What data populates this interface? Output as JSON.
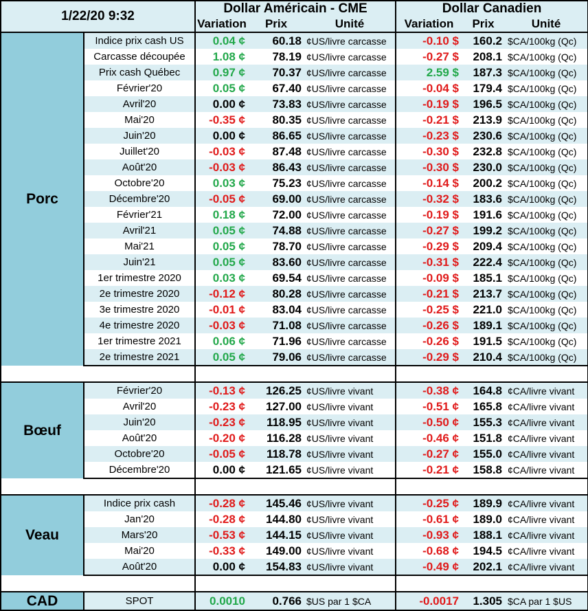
{
  "header": {
    "timestamp": "1/22/20 9:32",
    "us_group": "Dollar Américain - CME",
    "ca_group": "Dollar Canadien",
    "col_variation": "Variation",
    "col_prix": "Prix",
    "col_unite": "Unité"
  },
  "colors": {
    "header_bg": "#dbeef3",
    "category_bg": "#92cddc",
    "positive": "#22a84a",
    "negative": "#e01a1a"
  },
  "sections": [
    {
      "name": "Porc",
      "rows": [
        {
          "label": "Indice prix cash US",
          "us_var": "0.04 ¢",
          "us_sign": "pos",
          "us_prix": "60.18",
          "us_unit": "¢US/livre carcasse",
          "ca_var": "-0.10 $",
          "ca_sign": "neg",
          "ca_prix": "160.2",
          "ca_unit": "$CA/100kg (Qc)"
        },
        {
          "label": "Carcasse découpée",
          "us_var": "1.08 ¢",
          "us_sign": "pos",
          "us_prix": "78.19",
          "us_unit": "¢US/livre carcasse",
          "ca_var": "-0.27 $",
          "ca_sign": "neg",
          "ca_prix": "208.1",
          "ca_unit": "$CA/100kg (Qc)"
        },
        {
          "label": "Prix cash Québec",
          "us_var": "0.97 ¢",
          "us_sign": "pos",
          "us_prix": "70.37",
          "us_unit": "¢US/livre carcasse",
          "ca_var": "2.59 $",
          "ca_sign": "pos",
          "ca_prix": "187.3",
          "ca_unit": "$CA/100kg (Qc)"
        },
        {
          "label": "Février'20",
          "us_var": "0.05 ¢",
          "us_sign": "pos",
          "us_prix": "67.40",
          "us_unit": "¢US/livre carcasse",
          "ca_var": "-0.04 $",
          "ca_sign": "neg",
          "ca_prix": "179.4",
          "ca_unit": "$CA/100kg (Qc)"
        },
        {
          "label": "Avril'20",
          "us_var": "0.00 ¢",
          "us_sign": "zero",
          "us_prix": "73.83",
          "us_unit": "¢US/livre carcasse",
          "ca_var": "-0.19 $",
          "ca_sign": "neg",
          "ca_prix": "196.5",
          "ca_unit": "$CA/100kg (Qc)"
        },
        {
          "label": "Mai'20",
          "us_var": "-0.35 ¢",
          "us_sign": "neg",
          "us_prix": "80.35",
          "us_unit": "¢US/livre carcasse",
          "ca_var": "-0.21 $",
          "ca_sign": "neg",
          "ca_prix": "213.9",
          "ca_unit": "$CA/100kg (Qc)"
        },
        {
          "label": "Juin'20",
          "us_var": "0.00 ¢",
          "us_sign": "zero",
          "us_prix": "86.65",
          "us_unit": "¢US/livre carcasse",
          "ca_var": "-0.23 $",
          "ca_sign": "neg",
          "ca_prix": "230.6",
          "ca_unit": "$CA/100kg (Qc)"
        },
        {
          "label": "Juillet'20",
          "us_var": "-0.03 ¢",
          "us_sign": "neg",
          "us_prix": "87.48",
          "us_unit": "¢US/livre carcasse",
          "ca_var": "-0.30 $",
          "ca_sign": "neg",
          "ca_prix": "232.8",
          "ca_unit": "$CA/100kg (Qc)"
        },
        {
          "label": "Août'20",
          "us_var": "-0.03 ¢",
          "us_sign": "neg",
          "us_prix": "86.43",
          "us_unit": "¢US/livre carcasse",
          "ca_var": "-0.30 $",
          "ca_sign": "neg",
          "ca_prix": "230.0",
          "ca_unit": "$CA/100kg (Qc)"
        },
        {
          "label": "Octobre'20",
          "us_var": "0.03 ¢",
          "us_sign": "pos",
          "us_prix": "75.23",
          "us_unit": "¢US/livre carcasse",
          "ca_var": "-0.14 $",
          "ca_sign": "neg",
          "ca_prix": "200.2",
          "ca_unit": "$CA/100kg (Qc)"
        },
        {
          "label": "Décembre'20",
          "us_var": "-0.05 ¢",
          "us_sign": "neg",
          "us_prix": "69.00",
          "us_unit": "¢US/livre carcasse",
          "ca_var": "-0.32 $",
          "ca_sign": "neg",
          "ca_prix": "183.6",
          "ca_unit": "$CA/100kg (Qc)"
        },
        {
          "label": "Février'21",
          "us_var": "0.18 ¢",
          "us_sign": "pos",
          "us_prix": "72.00",
          "us_unit": "¢US/livre carcasse",
          "ca_var": "-0.19 $",
          "ca_sign": "neg",
          "ca_prix": "191.6",
          "ca_unit": "$CA/100kg (Qc)"
        },
        {
          "label": "Avril'21",
          "us_var": "0.05 ¢",
          "us_sign": "pos",
          "us_prix": "74.88",
          "us_unit": "¢US/livre carcasse",
          "ca_var": "-0.27 $",
          "ca_sign": "neg",
          "ca_prix": "199.2",
          "ca_unit": "$CA/100kg (Qc)"
        },
        {
          "label": "Mai'21",
          "us_var": "0.05 ¢",
          "us_sign": "pos",
          "us_prix": "78.70",
          "us_unit": "¢US/livre carcasse",
          "ca_var": "-0.29 $",
          "ca_sign": "neg",
          "ca_prix": "209.4",
          "ca_unit": "$CA/100kg (Qc)"
        },
        {
          "label": "Juin'21",
          "us_var": "0.05 ¢",
          "us_sign": "pos",
          "us_prix": "83.60",
          "us_unit": "¢US/livre carcasse",
          "ca_var": "-0.31 $",
          "ca_sign": "neg",
          "ca_prix": "222.4",
          "ca_unit": "$CA/100kg (Qc)"
        },
        {
          "label": "1er trimestre 2020",
          "us_var": "0.03 ¢",
          "us_sign": "pos",
          "us_prix": "69.54",
          "us_unit": "¢US/livre carcasse",
          "ca_var": "-0.09 $",
          "ca_sign": "neg",
          "ca_prix": "185.1",
          "ca_unit": "$CA/100kg (Qc)"
        },
        {
          "label": "2e trimestre 2020",
          "us_var": "-0.12 ¢",
          "us_sign": "neg",
          "us_prix": "80.28",
          "us_unit": "¢US/livre carcasse",
          "ca_var": "-0.21 $",
          "ca_sign": "neg",
          "ca_prix": "213.7",
          "ca_unit": "$CA/100kg (Qc)"
        },
        {
          "label": "3e trimestre 2020",
          "us_var": "-0.01 ¢",
          "us_sign": "neg",
          "us_prix": "83.04",
          "us_unit": "¢US/livre carcasse",
          "ca_var": "-0.25 $",
          "ca_sign": "neg",
          "ca_prix": "221.0",
          "ca_unit": "$CA/100kg (Qc)"
        },
        {
          "label": "4e trimestre 2020",
          "us_var": "-0.03 ¢",
          "us_sign": "neg",
          "us_prix": "71.08",
          "us_unit": "¢US/livre carcasse",
          "ca_var": "-0.26 $",
          "ca_sign": "neg",
          "ca_prix": "189.1",
          "ca_unit": "$CA/100kg (Qc)"
        },
        {
          "label": "1er trimestre 2021",
          "us_var": "0.06 ¢",
          "us_sign": "pos",
          "us_prix": "71.96",
          "us_unit": "¢US/livre carcasse",
          "ca_var": "-0.26 $",
          "ca_sign": "neg",
          "ca_prix": "191.5",
          "ca_unit": "$CA/100kg (Qc)"
        },
        {
          "label": "2e trimestre 2021",
          "us_var": "0.05 ¢",
          "us_sign": "pos",
          "us_prix": "79.06",
          "us_unit": "¢US/livre carcasse",
          "ca_var": "-0.29 $",
          "ca_sign": "neg",
          "ca_prix": "210.4",
          "ca_unit": "$CA/100kg (Qc)"
        }
      ]
    },
    {
      "name": "Bœuf",
      "rows": [
        {
          "label": "Février'20",
          "us_var": "-0.13 ¢",
          "us_sign": "neg",
          "us_prix": "126.25",
          "us_unit": "¢US/livre vivant",
          "ca_var": "-0.38 ¢",
          "ca_sign": "neg",
          "ca_prix": "164.8",
          "ca_unit": "¢CA/livre vivant"
        },
        {
          "label": "Avril'20",
          "us_var": "-0.23 ¢",
          "us_sign": "neg",
          "us_prix": "127.00",
          "us_unit": "¢US/livre vivant",
          "ca_var": "-0.51 ¢",
          "ca_sign": "neg",
          "ca_prix": "165.8",
          "ca_unit": "¢CA/livre vivant"
        },
        {
          "label": "Juin'20",
          "us_var": "-0.23 ¢",
          "us_sign": "neg",
          "us_prix": "118.95",
          "us_unit": "¢US/livre vivant",
          "ca_var": "-0.50 ¢",
          "ca_sign": "neg",
          "ca_prix": "155.3",
          "ca_unit": "¢CA/livre vivant"
        },
        {
          "label": "Août'20",
          "us_var": "-0.20 ¢",
          "us_sign": "neg",
          "us_prix": "116.28",
          "us_unit": "¢US/livre vivant",
          "ca_var": "-0.46 ¢",
          "ca_sign": "neg",
          "ca_prix": "151.8",
          "ca_unit": "¢CA/livre vivant"
        },
        {
          "label": "Octobre'20",
          "us_var": "-0.05 ¢",
          "us_sign": "neg",
          "us_prix": "118.78",
          "us_unit": "¢US/livre vivant",
          "ca_var": "-0.27 ¢",
          "ca_sign": "neg",
          "ca_prix": "155.0",
          "ca_unit": "¢CA/livre vivant"
        },
        {
          "label": "Décembre'20",
          "us_var": "0.00 ¢",
          "us_sign": "zero",
          "us_prix": "121.65",
          "us_unit": "¢US/livre vivant",
          "ca_var": "-0.21 ¢",
          "ca_sign": "neg",
          "ca_prix": "158.8",
          "ca_unit": "¢CA/livre vivant"
        }
      ]
    },
    {
      "name": "Veau",
      "rows": [
        {
          "label": "Indice prix cash",
          "us_var": "-0.28 ¢",
          "us_sign": "neg",
          "us_prix": "145.46",
          "us_unit": "¢US/livre vivant",
          "ca_var": "-0.25 ¢",
          "ca_sign": "neg",
          "ca_prix": "189.9",
          "ca_unit": "¢CA/livre vivant"
        },
        {
          "label": "Jan'20",
          "us_var": "-0.28 ¢",
          "us_sign": "neg",
          "us_prix": "144.80",
          "us_unit": "¢US/livre vivant",
          "ca_var": "-0.61 ¢",
          "ca_sign": "neg",
          "ca_prix": "189.0",
          "ca_unit": "¢CA/livre vivant"
        },
        {
          "label": "Mars'20",
          "us_var": "-0.53 ¢",
          "us_sign": "neg",
          "us_prix": "144.15",
          "us_unit": "¢US/livre vivant",
          "ca_var": "-0.93 ¢",
          "ca_sign": "neg",
          "ca_prix": "188.1",
          "ca_unit": "¢CA/livre vivant"
        },
        {
          "label": "Mai'20",
          "us_var": "-0.33 ¢",
          "us_sign": "neg",
          "us_prix": "149.00",
          "us_unit": "¢US/livre vivant",
          "ca_var": "-0.68 ¢",
          "ca_sign": "neg",
          "ca_prix": "194.5",
          "ca_unit": "¢CA/livre vivant"
        },
        {
          "label": "Août'20",
          "us_var": "0.00 ¢",
          "us_sign": "zero",
          "us_prix": "154.83",
          "us_unit": "¢US/livre vivant",
          "ca_var": "-0.49 ¢",
          "ca_sign": "neg",
          "ca_prix": "202.1",
          "ca_unit": "¢CA/livre vivant"
        }
      ]
    }
  ],
  "cad": {
    "name": "CAD",
    "label": "SPOT",
    "us_var": "0.0010",
    "us_sign": "pos",
    "us_prix": "0.766",
    "us_unit": "$US par 1 $CA",
    "ca_var": "-0.0017",
    "ca_sign": "neg",
    "ca_prix": "1.305",
    "ca_unit": "$CA par 1 $US"
  }
}
